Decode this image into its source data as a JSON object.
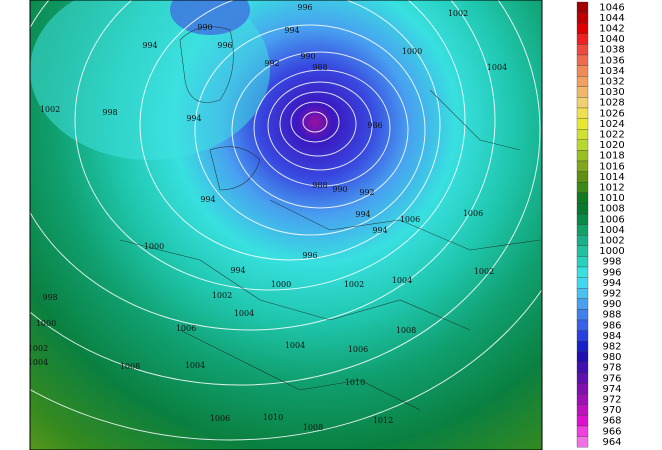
{
  "map_labels": [
    "996",
    "1002",
    "994",
    "996",
    "994",
    "990",
    "992",
    "990",
    "988",
    "1000",
    "1004",
    "1002",
    "998",
    "994",
    "986",
    "988",
    "990",
    "992",
    "994",
    "994",
    "1006",
    "1006",
    "994",
    "1000",
    "996",
    "994",
    "1002",
    "1000",
    "1002",
    "1004",
    "998",
    "1002",
    "1004",
    "1000",
    "1006",
    "1008",
    "1004",
    "1002",
    "1006",
    "1004",
    "1008",
    "1004",
    "1010",
    "1006",
    "1010",
    "1008",
    "1012"
  ],
  "legend": [
    {
      "label": "1046",
      "color": "#a00000"
    },
    {
      "label": "1044",
      "color": "#c00000"
    },
    {
      "label": "1042",
      "color": "#e00000"
    },
    {
      "label": "1040",
      "color": "#f02020"
    },
    {
      "label": "1038",
      "color": "#f04a40"
    },
    {
      "label": "1036",
      "color": "#f06a50"
    },
    {
      "label": "1034",
      "color": "#f08a58"
    },
    {
      "label": "1032",
      "color": "#f0a060"
    },
    {
      "label": "1030",
      "color": "#f0b868"
    },
    {
      "label": "1028",
      "color": "#f0d070"
    },
    {
      "label": "1026",
      "color": "#f0e050"
    },
    {
      "label": "1024",
      "color": "#e8e830"
    },
    {
      "label": "1022",
      "color": "#d0e030"
    },
    {
      "label": "1020",
      "color": "#b8d830"
    },
    {
      "label": "1018",
      "color": "#98c020"
    },
    {
      "label": "1016",
      "color": "#80a818"
    },
    {
      "label": "1014",
      "color": "#609010"
    },
    {
      "label": "1012",
      "color": "#3a8a18"
    },
    {
      "label": "1010",
      "color": "#107a20"
    },
    {
      "label": "1008",
      "color": "#087a30"
    },
    {
      "label": "1006",
      "color": "#0a8a48"
    },
    {
      "label": "1004",
      "color": "#10a068"
    },
    {
      "label": "1002",
      "color": "#18b088"
    },
    {
      "label": "1000",
      "color": "#20c0a0"
    },
    {
      "label": "998",
      "color": "#28d0c0"
    },
    {
      "label": "996",
      "color": "#38e0e0"
    },
    {
      "label": "994",
      "color": "#40d8f0"
    },
    {
      "label": "992",
      "color": "#48c0f0"
    },
    {
      "label": "990",
      "color": "#48a0f0"
    },
    {
      "label": "988",
      "color": "#4080f0"
    },
    {
      "label": "986",
      "color": "#3860e8"
    },
    {
      "label": "984",
      "color": "#2840e0"
    },
    {
      "label": "982",
      "color": "#1820c8"
    },
    {
      "label": "980",
      "color": "#2010b0"
    },
    {
      "label": "978",
      "color": "#4010b0"
    },
    {
      "label": "976",
      "color": "#6010b0"
    },
    {
      "label": "974",
      "color": "#8010b0"
    },
    {
      "label": "972",
      "color": "#a010b8"
    },
    {
      "label": "970",
      "color": "#c010c0"
    },
    {
      "label": "968",
      "color": "#e010d0"
    },
    {
      "label": "966",
      "color": "#f040e0"
    },
    {
      "label": "964",
      "color": "#f070e8"
    }
  ]
}
